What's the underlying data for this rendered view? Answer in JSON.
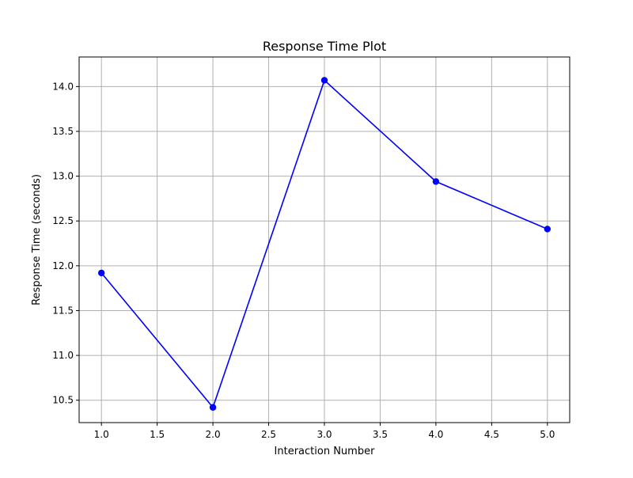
{
  "chart_data": {
    "type": "line",
    "title": "Response Time Plot",
    "xlabel": "Interaction Number",
    "ylabel": "Response Time (seconds)",
    "x": [
      1,
      2,
      3,
      4,
      5
    ],
    "series": [
      {
        "values": [
          11.92,
          10.42,
          14.07,
          12.94,
          12.41
        ],
        "color": "#0000ff",
        "marker": "circle"
      }
    ],
    "xlim": [
      0.8,
      5.2
    ],
    "ylim": [
      10.25,
      14.33
    ],
    "xticks": [
      "1.0",
      "1.5",
      "2.0",
      "2.5",
      "3.0",
      "3.5",
      "4.0",
      "4.5",
      "5.0"
    ],
    "yticks": [
      "10.5",
      "11.0",
      "11.5",
      "12.0",
      "12.5",
      "13.0",
      "13.5",
      "14.0"
    ],
    "grid": true,
    "legend": "none"
  }
}
